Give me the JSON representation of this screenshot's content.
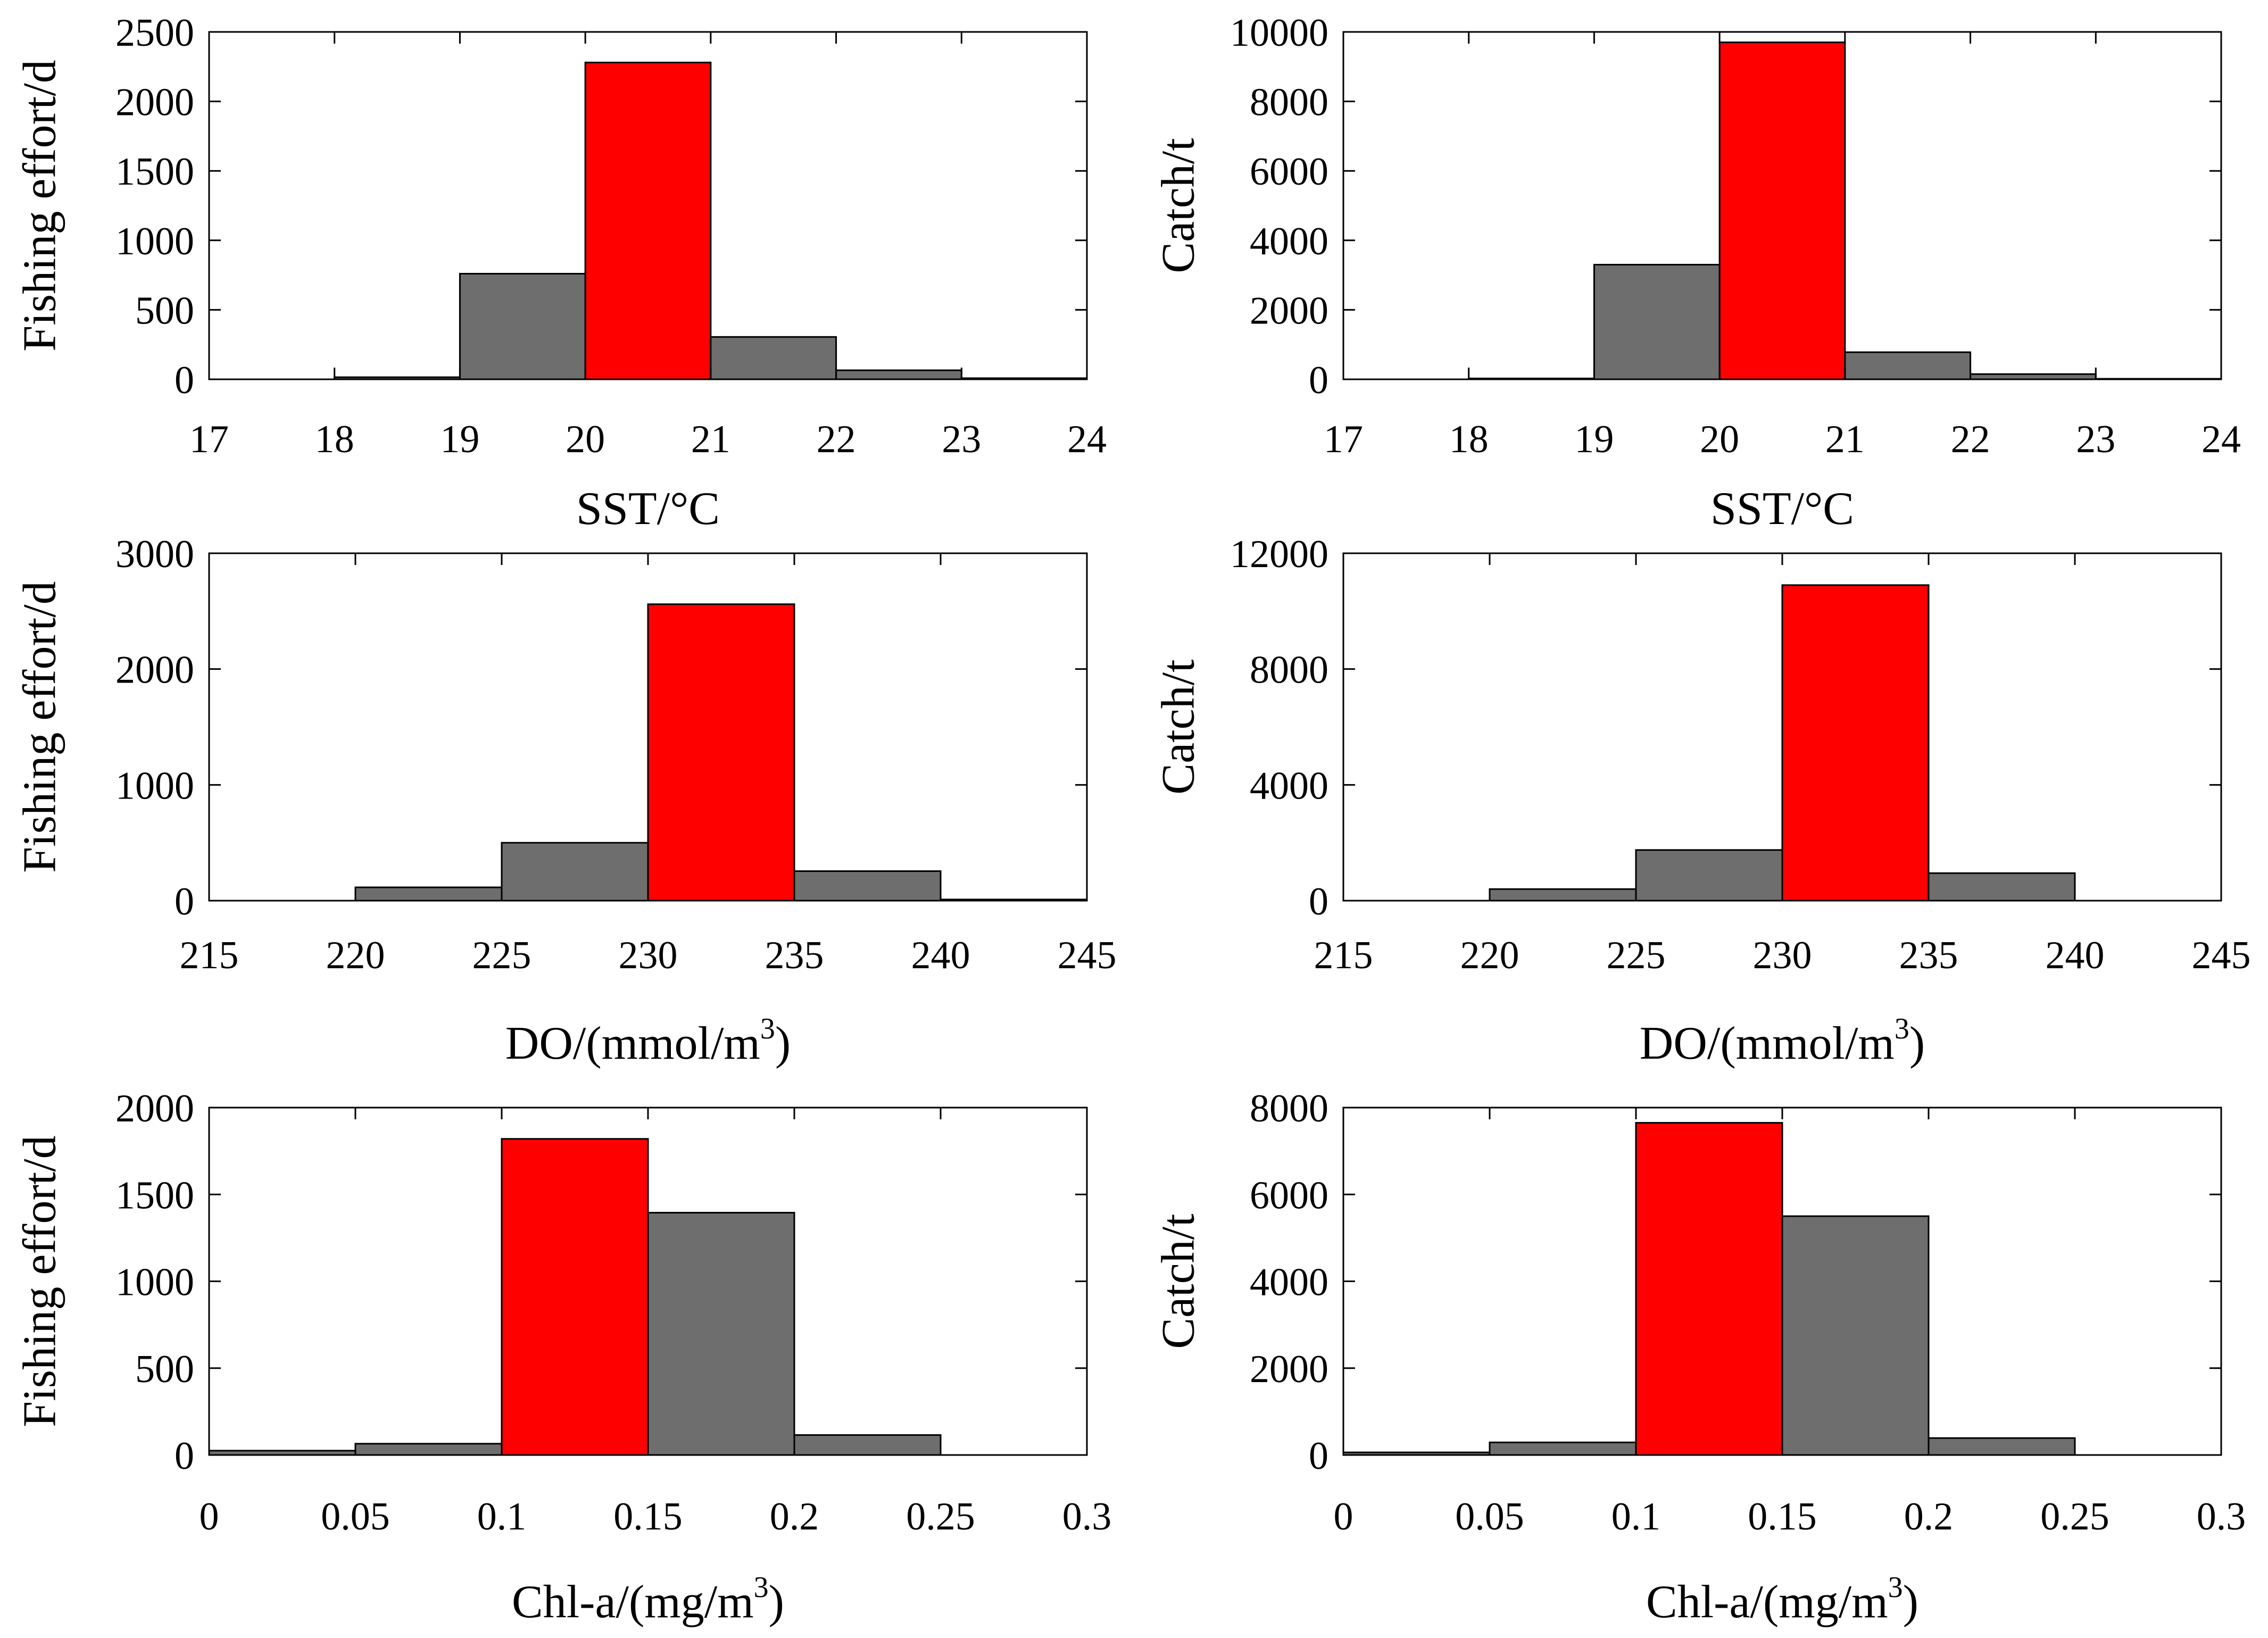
{
  "figure": {
    "background": "#ffffff"
  },
  "colors": {
    "highlight": "#ff0000",
    "default": "#6e6e6e",
    "axis": "#000000"
  },
  "chart_data": [
    {
      "type": "bar",
      "id": "sst-effort",
      "xlabel": "SST/°C",
      "ylabel": "Fishing effort/d",
      "xlim": [
        17,
        24
      ],
      "ylim": [
        0,
        2500
      ],
      "xticks": [
        17,
        18,
        19,
        20,
        21,
        22,
        23,
        24
      ],
      "xtick_labels": [
        "17",
        "18",
        "19",
        "20",
        "21",
        "22",
        "23",
        "24"
      ],
      "yticks": [
        0,
        500,
        1000,
        1500,
        2000,
        2500
      ],
      "ytick_labels": [
        "0",
        "500",
        "1000",
        "1500",
        "2000",
        "2500"
      ],
      "bins": [
        {
          "from": 17,
          "to": 18,
          "value": 0,
          "highlight": false
        },
        {
          "from": 18,
          "to": 19,
          "value": 15,
          "highlight": false
        },
        {
          "from": 19,
          "to": 20,
          "value": 760,
          "highlight": false
        },
        {
          "from": 20,
          "to": 21,
          "value": 2280,
          "highlight": true
        },
        {
          "from": 21,
          "to": 22,
          "value": 305,
          "highlight": false
        },
        {
          "from": 22,
          "to": 23,
          "value": 65,
          "highlight": false
        },
        {
          "from": 23,
          "to": 24,
          "value": 8,
          "highlight": false
        }
      ]
    },
    {
      "type": "bar",
      "id": "sst-catch",
      "xlabel": "SST/°C",
      "ylabel": "Catch/t",
      "xlim": [
        17,
        24
      ],
      "ylim": [
        0,
        10000
      ],
      "xticks": [
        17,
        18,
        19,
        20,
        21,
        22,
        23,
        24
      ],
      "xtick_labels": [
        "17",
        "18",
        "19",
        "20",
        "21",
        "22",
        "23",
        "24"
      ],
      "yticks": [
        0,
        2000,
        4000,
        6000,
        8000,
        10000
      ],
      "ytick_labels": [
        "0",
        "2000",
        "4000",
        "6000",
        "8000",
        "10000"
      ],
      "bins": [
        {
          "from": 17,
          "to": 18,
          "value": 0,
          "highlight": false
        },
        {
          "from": 18,
          "to": 19,
          "value": 25,
          "highlight": false
        },
        {
          "from": 19,
          "to": 20,
          "value": 3300,
          "highlight": false
        },
        {
          "from": 20,
          "to": 21,
          "value": 9700,
          "highlight": true
        },
        {
          "from": 21,
          "to": 22,
          "value": 780,
          "highlight": false
        },
        {
          "from": 22,
          "to": 23,
          "value": 150,
          "highlight": false
        },
        {
          "from": 23,
          "to": 24,
          "value": 15,
          "highlight": false
        }
      ]
    },
    {
      "type": "bar",
      "id": "do-effort",
      "xlabel": "DO/(mmol/m",
      "xlabel_sup": "3",
      "xlabel_tail": ")",
      "ylabel": "Fishing effort/d",
      "xlim": [
        215,
        245
      ],
      "ylim": [
        0,
        3000
      ],
      "xticks": [
        215,
        220,
        225,
        230,
        235,
        240,
        245
      ],
      "xtick_labels": [
        "215",
        "220",
        "225",
        "230",
        "235",
        "240",
        "245"
      ],
      "yticks": [
        0,
        1000,
        2000,
        3000
      ],
      "ytick_labels": [
        "0",
        "1000",
        "2000",
        "3000"
      ],
      "bins": [
        {
          "from": 215,
          "to": 220,
          "value": 0,
          "highlight": false
        },
        {
          "from": 220,
          "to": 225,
          "value": 115,
          "highlight": false
        },
        {
          "from": 225,
          "to": 230,
          "value": 500,
          "highlight": false
        },
        {
          "from": 230,
          "to": 235,
          "value": 2560,
          "highlight": true
        },
        {
          "from": 235,
          "to": 240,
          "value": 255,
          "highlight": false
        },
        {
          "from": 240,
          "to": 245,
          "value": 10,
          "highlight": false
        }
      ]
    },
    {
      "type": "bar",
      "id": "do-catch",
      "xlabel": "DO/(mmol/m",
      "xlabel_sup": "3",
      "xlabel_tail": ")",
      "ylabel": "Catch/t",
      "xlim": [
        215,
        245
      ],
      "ylim": [
        0,
        12000
      ],
      "xticks": [
        215,
        220,
        225,
        230,
        235,
        240,
        245
      ],
      "xtick_labels": [
        "215",
        "220",
        "225",
        "230",
        "235",
        "240",
        "245"
      ],
      "yticks": [
        0,
        4000,
        8000,
        12000
      ],
      "ytick_labels": [
        "0",
        "4000",
        "8000",
        "12000"
      ],
      "bins": [
        {
          "from": 215,
          "to": 220,
          "value": 0,
          "highlight": false
        },
        {
          "from": 220,
          "to": 225,
          "value": 400,
          "highlight": false
        },
        {
          "from": 225,
          "to": 230,
          "value": 1750,
          "highlight": false
        },
        {
          "from": 230,
          "to": 235,
          "value": 10900,
          "highlight": true
        },
        {
          "from": 235,
          "to": 240,
          "value": 950,
          "highlight": false
        },
        {
          "from": 240,
          "to": 245,
          "value": 0,
          "highlight": false
        }
      ]
    },
    {
      "type": "bar",
      "id": "chla-effort",
      "xlabel": "Chl-a/(mg/m",
      "xlabel_sup": "3",
      "xlabel_tail": ")",
      "ylabel": "Fishing effort/d",
      "xlim": [
        0,
        0.3
      ],
      "ylim": [
        0,
        2000
      ],
      "xticks": [
        0,
        0.05,
        0.1,
        0.15,
        0.2,
        0.25,
        0.3
      ],
      "xtick_labels": [
        "0",
        "0.05",
        "0.1",
        "0.15",
        "0.2",
        "0.25",
        "0.3"
      ],
      "yticks": [
        0,
        500,
        1000,
        1500,
        2000
      ],
      "ytick_labels": [
        "0",
        "500",
        "1000",
        "1500",
        "2000"
      ],
      "bins": [
        {
          "from": 0,
          "to": 0.05,
          "value": 25,
          "highlight": false
        },
        {
          "from": 0.05,
          "to": 0.1,
          "value": 65,
          "highlight": false
        },
        {
          "from": 0.1,
          "to": 0.15,
          "value": 1820,
          "highlight": true
        },
        {
          "from": 0.15,
          "to": 0.2,
          "value": 1395,
          "highlight": false
        },
        {
          "from": 0.2,
          "to": 0.25,
          "value": 115,
          "highlight": false
        },
        {
          "from": 0.25,
          "to": 0.3,
          "value": 0,
          "highlight": false
        }
      ]
    },
    {
      "type": "bar",
      "id": "chla-catch",
      "xlabel": "Chl-a/(mg/m",
      "xlabel_sup": "3",
      "xlabel_tail": ")",
      "ylabel": "Catch/t",
      "xlim": [
        0,
        0.3
      ],
      "ylim": [
        0,
        8000
      ],
      "xticks": [
        0,
        0.05,
        0.1,
        0.15,
        0.2,
        0.25,
        0.3
      ],
      "xtick_labels": [
        "0",
        "0.05",
        "0.1",
        "0.15",
        "0.2",
        "0.25",
        "0.3"
      ],
      "yticks": [
        0,
        2000,
        4000,
        6000,
        8000
      ],
      "ytick_labels": [
        "0",
        "2000",
        "4000",
        "6000",
        "8000"
      ],
      "bins": [
        {
          "from": 0,
          "to": 0.05,
          "value": 60,
          "highlight": false
        },
        {
          "from": 0.05,
          "to": 0.1,
          "value": 290,
          "highlight": false
        },
        {
          "from": 0.1,
          "to": 0.15,
          "value": 7650,
          "highlight": true
        },
        {
          "from": 0.15,
          "to": 0.2,
          "value": 5500,
          "highlight": false
        },
        {
          "from": 0.2,
          "to": 0.25,
          "value": 390,
          "highlight": false
        },
        {
          "from": 0.25,
          "to": 0.3,
          "value": 0,
          "highlight": false
        }
      ]
    }
  ]
}
